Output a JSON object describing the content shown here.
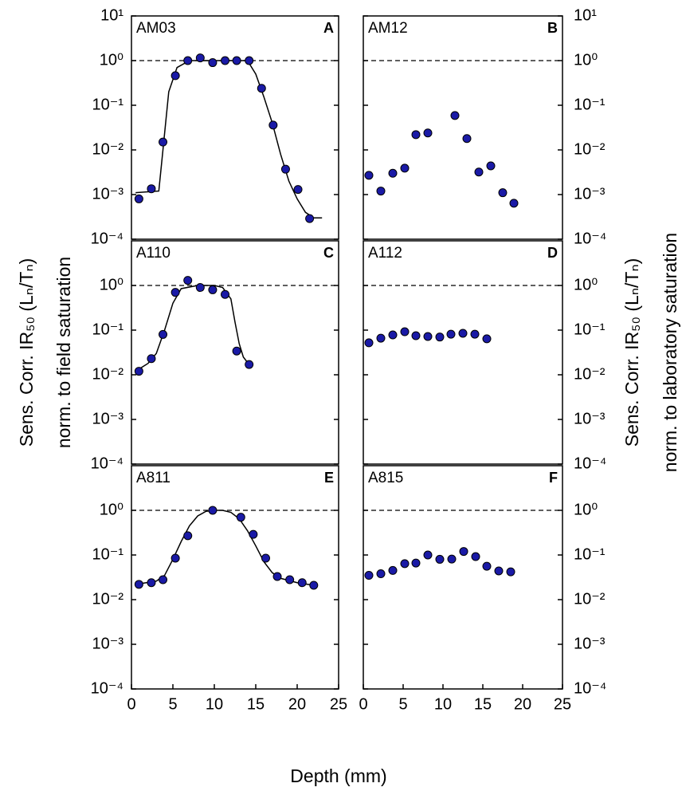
{
  "chart_data": [
    {
      "type": "scatter",
      "label": "AM03",
      "letter": "A",
      "y_side": "left",
      "log_y": true,
      "reference_line": 1,
      "xlim": [
        0,
        25
      ],
      "ylim": [
        0.0001,
        10
      ],
      "yticks": [
        {
          "value": 0.0001,
          "label": "10⁻⁴"
        },
        {
          "value": 0.001,
          "label": "10⁻³"
        },
        {
          "value": 0.01,
          "label": "10⁻²"
        },
        {
          "value": 0.1,
          "label": "10⁻¹"
        },
        {
          "value": 1,
          "label": "10⁰"
        },
        {
          "value": 10,
          "label": "10¹"
        }
      ],
      "series": [
        {
          "color": "#1a1aa6",
          "x": [
            0.9,
            2.4,
            3.8,
            5.3,
            6.8,
            8.3,
            9.8,
            11.3,
            12.7,
            14.2,
            15.7,
            17.1,
            18.6,
            20.1,
            21.5
          ],
          "values": [
            0.0008,
            0.00135,
            0.015,
            0.46,
            1.0,
            1.15,
            0.9,
            1.0,
            1.0,
            1.0,
            0.24,
            0.036,
            0.0037,
            0.0013,
            0.00029
          ]
        }
      ],
      "fit": {
        "x": [
          0.5,
          3.3,
          3.8,
          4.5,
          5.5,
          7,
          14,
          15,
          16,
          17,
          18,
          19,
          20,
          21,
          22,
          23
        ],
        "values": [
          0.0011,
          0.0012,
          0.01,
          0.2,
          0.7,
          1.0,
          1.0,
          0.5,
          0.15,
          0.04,
          0.008,
          0.002,
          0.0008,
          0.0004,
          0.0003,
          0.0003
        ]
      }
    },
    {
      "type": "scatter",
      "label": "AM12",
      "letter": "B",
      "y_side": "right",
      "log_y": true,
      "reference_line": 1,
      "xlim": [
        0,
        25
      ],
      "ylim": [
        0.0001,
        10
      ],
      "yticks": [
        {
          "value": 0.0001,
          "label": "10⁻⁴"
        },
        {
          "value": 0.001,
          "label": "10⁻³"
        },
        {
          "value": 0.01,
          "label": "10⁻²"
        },
        {
          "value": 0.1,
          "label": "10⁻¹"
        },
        {
          "value": 1,
          "label": "10⁰"
        },
        {
          "value": 10,
          "label": "10¹"
        }
      ],
      "series": [
        {
          "color": "#1a1aa6",
          "x": [
            0.7,
            2.2,
            3.7,
            5.2,
            6.6,
            8.1,
            11.5,
            13.0,
            14.5,
            16.0,
            17.5,
            18.9
          ],
          "values": [
            0.0027,
            0.0012,
            0.003,
            0.0039,
            0.022,
            0.024,
            0.059,
            0.018,
            0.0032,
            0.0044,
            0.0011,
            0.00064
          ]
        }
      ]
    },
    {
      "type": "scatter",
      "label": "A110",
      "letter": "C",
      "y_side": "left",
      "log_y": true,
      "reference_line": 1,
      "xlim": [
        0,
        25
      ],
      "ylim": [
        0.0001,
        10
      ],
      "yticks": [
        {
          "value": 0.0001,
          "label": "10⁻⁴"
        },
        {
          "value": 0.001,
          "label": "10⁻³"
        },
        {
          "value": 0.01,
          "label": "10⁻²"
        },
        {
          "value": 0.1,
          "label": "10⁻¹"
        },
        {
          "value": 1,
          "label": "10⁰"
        }
      ],
      "series": [
        {
          "color": "#1a1aa6",
          "x": [
            0.9,
            2.4,
            3.8,
            5.3,
            6.8,
            8.3,
            9.8,
            11.3,
            12.7,
            14.2
          ],
          "values": [
            0.012,
            0.023,
            0.08,
            0.7,
            1.3,
            0.9,
            0.8,
            0.63,
            0.034,
            0.017
          ]
        }
      ],
      "fit": {
        "x": [
          0.5,
          2,
          3,
          4,
          5,
          6,
          8,
          10,
          11,
          12,
          12.5,
          13,
          13.5,
          14.3
        ],
        "values": [
          0.012,
          0.018,
          0.03,
          0.1,
          0.4,
          0.85,
          1.0,
          1.0,
          0.9,
          0.5,
          0.15,
          0.05,
          0.025,
          0.016
        ]
      }
    },
    {
      "type": "scatter",
      "label": "A112",
      "letter": "D",
      "y_side": "right",
      "log_y": true,
      "reference_line": 1,
      "xlim": [
        0,
        25
      ],
      "ylim": [
        0.0001,
        10
      ],
      "yticks": [
        {
          "value": 0.0001,
          "label": "10⁻⁴"
        },
        {
          "value": 0.001,
          "label": "10⁻³"
        },
        {
          "value": 0.01,
          "label": "10⁻²"
        },
        {
          "value": 0.1,
          "label": "10⁻¹"
        },
        {
          "value": 1,
          "label": "10⁰"
        }
      ],
      "series": [
        {
          "color": "#1a1aa6",
          "x": [
            0.7,
            2.2,
            3.7,
            5.2,
            6.6,
            8.1,
            9.6,
            11,
            12.5,
            14,
            15.5
          ],
          "values": [
            0.052,
            0.066,
            0.078,
            0.092,
            0.075,
            0.072,
            0.07,
            0.081,
            0.085,
            0.081,
            0.064
          ]
        }
      ]
    },
    {
      "type": "scatter",
      "label": "A811",
      "letter": "E",
      "y_side": "left",
      "log_y": true,
      "reference_line": 1,
      "xlim": [
        0,
        25
      ],
      "ylim": [
        0.0001,
        10
      ],
      "xticks": [
        0,
        5,
        10,
        15,
        20,
        25
      ],
      "yticks": [
        {
          "value": 0.0001,
          "label": "10⁻⁴"
        },
        {
          "value": 0.001,
          "label": "10⁻³"
        },
        {
          "value": 0.01,
          "label": "10⁻²"
        },
        {
          "value": 0.1,
          "label": "10⁻¹"
        },
        {
          "value": 1,
          "label": "10⁰"
        }
      ],
      "series": [
        {
          "color": "#1a1aa6",
          "x": [
            0.9,
            2.4,
            3.8,
            5.3,
            6.8,
            9.8,
            13.2,
            14.7,
            16.2,
            17.6,
            19.1,
            20.6,
            22
          ],
          "values": [
            0.022,
            0.024,
            0.028,
            0.085,
            0.27,
            1.0,
            0.7,
            0.29,
            0.085,
            0.033,
            0.028,
            0.024,
            0.021
          ]
        }
      ],
      "fit": {
        "x": [
          0.5,
          3,
          4,
          5,
          6,
          7,
          8,
          9,
          10,
          11,
          12,
          13,
          14,
          15,
          16,
          17,
          18,
          20,
          22
        ],
        "values": [
          0.022,
          0.026,
          0.035,
          0.08,
          0.2,
          0.45,
          0.75,
          0.95,
          1.0,
          1.0,
          0.9,
          0.65,
          0.35,
          0.16,
          0.07,
          0.04,
          0.03,
          0.024,
          0.021
        ]
      }
    },
    {
      "type": "scatter",
      "label": "A815",
      "letter": "F",
      "y_side": "right",
      "log_y": true,
      "reference_line": 1,
      "xlim": [
        0,
        25
      ],
      "ylim": [
        0.0001,
        10
      ],
      "xticks": [
        0,
        5,
        10,
        15,
        20,
        25
      ],
      "yticks": [
        {
          "value": 0.0001,
          "label": "10⁻⁴"
        },
        {
          "value": 0.001,
          "label": "10⁻³"
        },
        {
          "value": 0.01,
          "label": "10⁻²"
        },
        {
          "value": 0.1,
          "label": "10⁻¹"
        },
        {
          "value": 1,
          "label": "10⁰"
        }
      ],
      "series": [
        {
          "color": "#1a1aa6",
          "x": [
            0.7,
            2.2,
            3.7,
            5.2,
            6.6,
            8.1,
            9.6,
            11.1,
            12.6,
            14.1,
            15.5,
            17,
            18.5
          ],
          "values": [
            0.035,
            0.038,
            0.045,
            0.064,
            0.066,
            0.1,
            0.08,
            0.081,
            0.12,
            0.092,
            0.056,
            0.044,
            0.042
          ]
        }
      ]
    }
  ],
  "axis_labels": {
    "x": "Depth (mm)",
    "left": [
      "Sens. Corr. IR₅₀ (Lₙ/Tₙ)",
      "norm. to field saturation"
    ],
    "right": [
      "Sens. Corr. IR₅₀ (Lₙ/Tₙ)",
      "norm. to laboratory saturation"
    ]
  }
}
